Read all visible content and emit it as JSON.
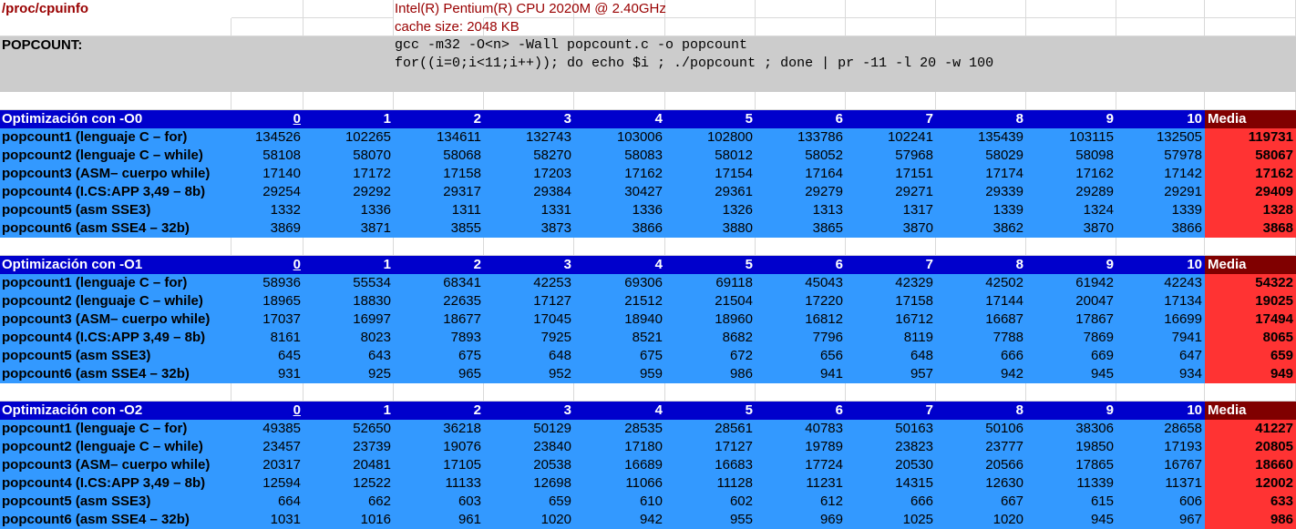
{
  "info": {
    "proc_label": "/proc/cpuinfo",
    "cpu": "Intel(R) Pentium(R) CPU 2020M @ 2.40GHz",
    "cache": "cache size: 2048 KB",
    "popcount_label": "POPCOUNT:",
    "cmd1": "gcc -m32 -O<n> -Wall popcount.c -o popcount",
    "cmd2": "for((i=0;i<11;i++)); do echo $i ; ./popcount ; done | pr -11 -l 20 -w 100"
  },
  "columns": [
    "0",
    "1",
    "2",
    "3",
    "4",
    "5",
    "6",
    "7",
    "8",
    "9",
    "10"
  ],
  "media_label": "Media",
  "tables": [
    {
      "title": "Optimización con -O0",
      "rows": [
        {
          "name": "popcount1 (lenguaje C – for)",
          "values": [
            "134526",
            "102265",
            "134611",
            "132743",
            "103006",
            "102800",
            "133786",
            "102241",
            "135439",
            "103115",
            "132505"
          ],
          "media": "119731"
        },
        {
          "name": "popcount2 (lenguaje C – while)",
          "values": [
            "58108",
            "58070",
            "58068",
            "58270",
            "58083",
            "58012",
            "58052",
            "57968",
            "58029",
            "58098",
            "57978"
          ],
          "media": "58067"
        },
        {
          "name": "popcount3 (ASM– cuerpo while)",
          "values": [
            "17140",
            "17172",
            "17158",
            "17203",
            "17162",
            "17154",
            "17164",
            "17151",
            "17174",
            "17162",
            "17142"
          ],
          "media": "17162"
        },
        {
          "name": "popcount4 (I.CS:APP 3,49 – 8b)",
          "values": [
            "29254",
            "29292",
            "29317",
            "29384",
            "30427",
            "29361",
            "29279",
            "29271",
            "29339",
            "29289",
            "29291"
          ],
          "media": "29409"
        },
        {
          "name": "popcount5 (asm SSE3)",
          "values": [
            "1332",
            "1336",
            "1311",
            "1331",
            "1336",
            "1326",
            "1313",
            "1317",
            "1339",
            "1324",
            "1339"
          ],
          "media": "1328"
        },
        {
          "name": "popcount6 (asm SSE4 – 32b)",
          "values": [
            "3869",
            "3871",
            "3855",
            "3873",
            "3866",
            "3880",
            "3865",
            "3870",
            "3862",
            "3870",
            "3866"
          ],
          "media": "3868"
        }
      ]
    },
    {
      "title": "Optimización con -O1",
      "rows": [
        {
          "name": "popcount1 (lenguaje C – for)",
          "values": [
            "58936",
            "55534",
            "68341",
            "42253",
            "69306",
            "69118",
            "45043",
            "42329",
            "42502",
            "61942",
            "42243"
          ],
          "media": "54322"
        },
        {
          "name": "popcount2 (lenguaje C – while)",
          "values": [
            "18965",
            "18830",
            "22635",
            "17127",
            "21512",
            "21504",
            "17220",
            "17158",
            "17144",
            "20047",
            "17134"
          ],
          "media": "19025"
        },
        {
          "name": "popcount3 (ASM– cuerpo while)",
          "values": [
            "17037",
            "16997",
            "18677",
            "17045",
            "18940",
            "18960",
            "16812",
            "16712",
            "16687",
            "17867",
            "16699"
          ],
          "media": "17494"
        },
        {
          "name": "popcount4 (I.CS:APP 3,49 – 8b)",
          "values": [
            "8161",
            "8023",
            "7893",
            "7925",
            "8521",
            "8682",
            "7796",
            "8119",
            "7788",
            "7869",
            "7941"
          ],
          "media": "8065"
        },
        {
          "name": "popcount5 (asm SSE3)",
          "values": [
            "645",
            "643",
            "675",
            "648",
            "675",
            "672",
            "656",
            "648",
            "666",
            "669",
            "647"
          ],
          "media": "659"
        },
        {
          "name": "popcount6 (asm SSE4 – 32b)",
          "values": [
            "931",
            "925",
            "965",
            "952",
            "959",
            "986",
            "941",
            "957",
            "942",
            "945",
            "934"
          ],
          "media": "949"
        }
      ]
    },
    {
      "title": "Optimización con -O2",
      "rows": [
        {
          "name": "popcount1 (lenguaje C – for)",
          "values": [
            "49385",
            "52650",
            "36218",
            "50129",
            "28535",
            "28561",
            "40783",
            "50163",
            "50106",
            "38306",
            "28658"
          ],
          "media": "41227"
        },
        {
          "name": "popcount2 (lenguaje C – while)",
          "values": [
            "23457",
            "23739",
            "19076",
            "23840",
            "17180",
            "17127",
            "19789",
            "23823",
            "23777",
            "19850",
            "17193"
          ],
          "media": "20805"
        },
        {
          "name": "popcount3 (ASM– cuerpo while)",
          "values": [
            "20317",
            "20481",
            "17105",
            "20538",
            "16689",
            "16683",
            "17724",
            "20530",
            "20566",
            "17865",
            "16767"
          ],
          "media": "18660"
        },
        {
          "name": "popcount4 (I.CS:APP 3,49 – 8b)",
          "values": [
            "12594",
            "12522",
            "11133",
            "12698",
            "11066",
            "11128",
            "11231",
            "14315",
            "12630",
            "11339",
            "11371"
          ],
          "media": "12002"
        },
        {
          "name": "popcount5 (asm SSE3)",
          "values": [
            "664",
            "662",
            "603",
            "659",
            "610",
            "602",
            "612",
            "666",
            "667",
            "615",
            "606"
          ],
          "media": "633"
        },
        {
          "name": "popcount6 (asm SSE4 – 32b)",
          "values": [
            "1031",
            "1016",
            "961",
            "1020",
            "942",
            "955",
            "969",
            "1025",
            "1020",
            "945",
            "967"
          ],
          "media": "986"
        }
      ]
    }
  ],
  "colors": {
    "header_bg": "#0000cc",
    "media_header_bg": "#800000",
    "data_bg": "#3399ff",
    "media_bg": "#ff3333",
    "info_text": "#990000",
    "cmd_block_bg": "#cccccc"
  }
}
